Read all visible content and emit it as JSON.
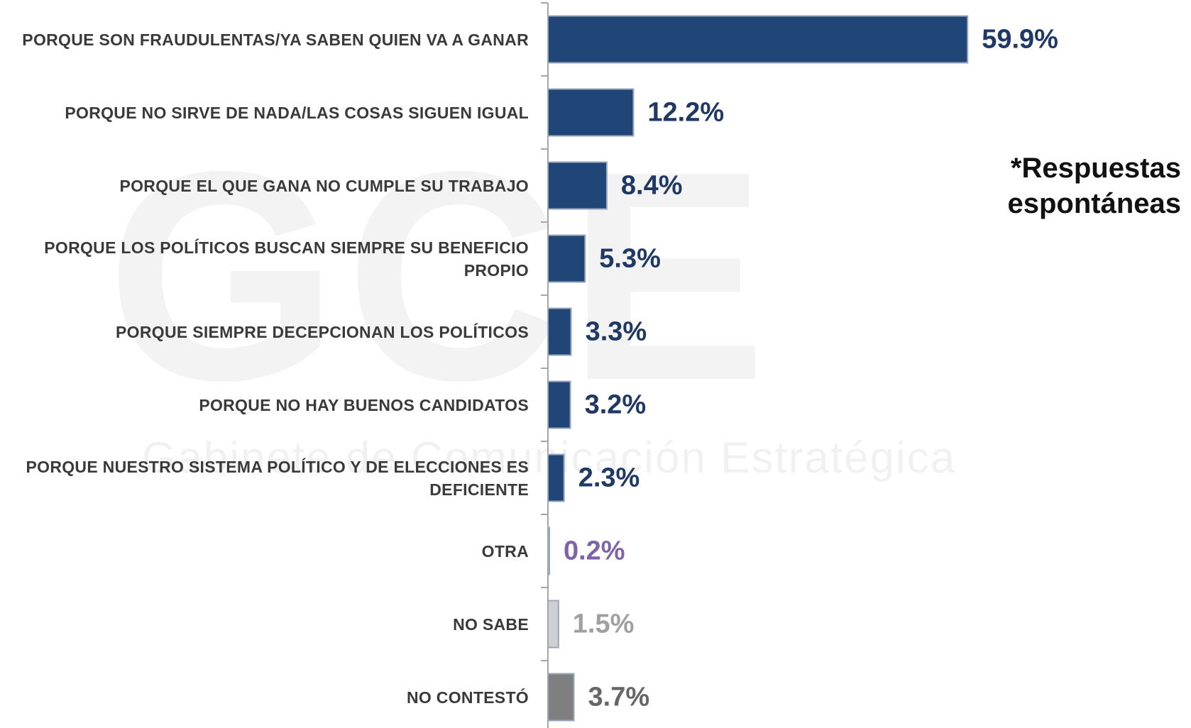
{
  "chart_data": {
    "type": "barh",
    "categories": [
      "PORQUE SON FRAUDULENTAS/YA SABEN QUIEN VA A GANAR",
      "PORQUE NO SIRVE DE NADA/LAS COSAS SIGUEN IGUAL",
      "PORQUE EL QUE GANA NO CUMPLE SU TRABAJO",
      "PORQUE LOS POLÍTICOS BUSCAN SIEMPRE SU BENEFICIO PROPIO",
      "PORQUE SIEMPRE DECEPCIONAN LOS POLÍTICOS",
      "PORQUE NO HAY BUENOS CANDIDATOS",
      "PORQUE NUESTRO SISTEMA POLÍTICO Y DE ELECCIONES ES DEFICIENTE",
      "OTRA",
      "NO SABE",
      "NO CONTESTÓ"
    ],
    "values": [
      59.9,
      12.2,
      8.4,
      5.3,
      3.3,
      3.2,
      2.3,
      0.2,
      1.5,
      3.7
    ],
    "value_labels": [
      "59.9%",
      "12.2%",
      "8.4%",
      "5.3%",
      "3.3%",
      "3.2%",
      "2.3%",
      "0.2%",
      "1.5%",
      "3.7%"
    ],
    "colors": [
      "#1f4677",
      "#1f4677",
      "#1f4677",
      "#1f4677",
      "#1f4677",
      "#1f4677",
      "#1f4677",
      "#7f63a8",
      "#cfcfcf",
      "#7f7f7f"
    ],
    "label_colors": [
      "#1f3864",
      "#1f3864",
      "#1f3864",
      "#1f3864",
      "#1f3864",
      "#1f3864",
      "#1f3864",
      "#7f63a8",
      "#a0a0a0",
      "#666666"
    ],
    "annotation": "*Respuestas espontáneas",
    "watermark": "Gabinete de Comunicación Estratégica"
  }
}
